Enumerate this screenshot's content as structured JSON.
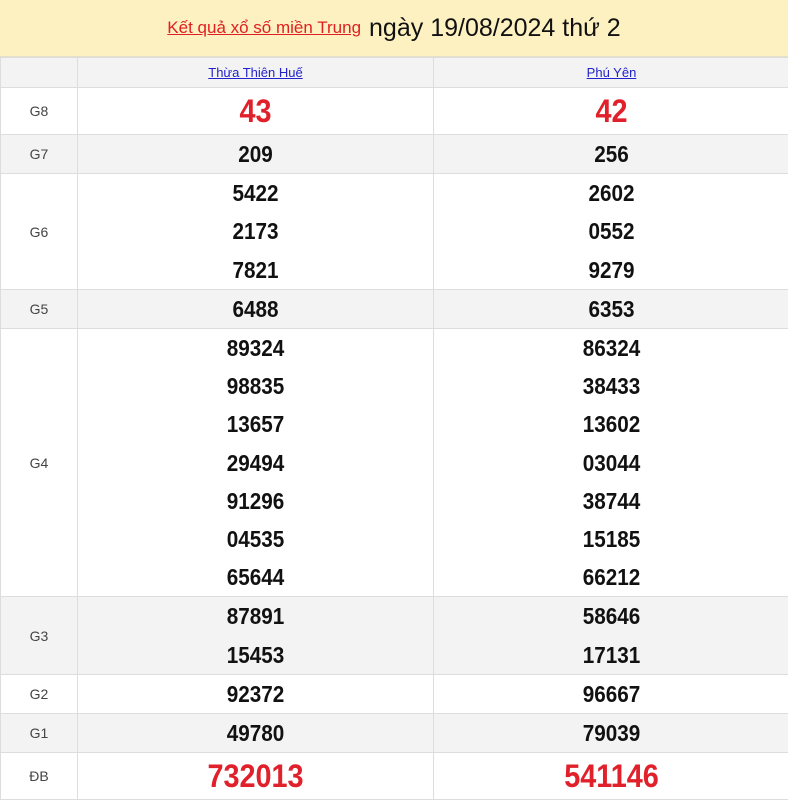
{
  "title": {
    "link": "Kết quả xổ số miền Trung",
    "date_text": "ngày 19/08/2024 thứ 2"
  },
  "provinces": [
    "Thừa Thiên Huế",
    "Phú Yên"
  ],
  "prizes": [
    {
      "label": "G8",
      "values": [
        [
          "43"
        ],
        [
          "42"
        ]
      ]
    },
    {
      "label": "G7",
      "values": [
        [
          "209"
        ],
        [
          "256"
        ]
      ]
    },
    {
      "label": "G6",
      "values": [
        [
          "5422",
          "2173",
          "7821"
        ],
        [
          "2602",
          "0552",
          "9279"
        ]
      ]
    },
    {
      "label": "G5",
      "values": [
        [
          "6488"
        ],
        [
          "6353"
        ]
      ]
    },
    {
      "label": "G4",
      "values": [
        [
          "89324",
          "98835",
          "13657",
          "29494",
          "91296",
          "04535",
          "65644"
        ],
        [
          "86324",
          "38433",
          "13602",
          "03044",
          "38744",
          "15185",
          "66212"
        ]
      ]
    },
    {
      "label": "G3",
      "values": [
        [
          "87891",
          "15453"
        ],
        [
          "58646",
          "17131"
        ]
      ]
    },
    {
      "label": "G2",
      "values": [
        [
          "92372"
        ],
        [
          "96667"
        ]
      ]
    },
    {
      "label": "G1",
      "values": [
        [
          "49780"
        ],
        [
          "79039"
        ]
      ]
    },
    {
      "label": "ĐB",
      "values": [
        [
          "732013"
        ],
        [
          "541146"
        ]
      ]
    }
  ],
  "colors": {
    "header_bg": "#fdf1c2",
    "highlight": "#e0202a",
    "link": "#2222cc"
  }
}
